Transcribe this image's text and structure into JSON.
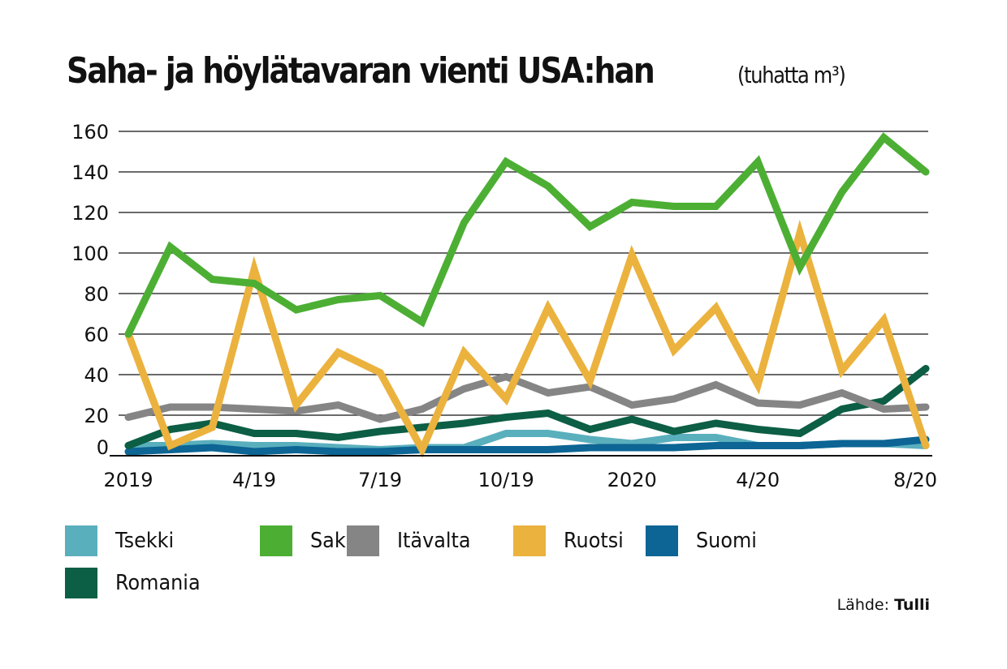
{
  "title": "Saha- ja höylätavaran vienti USA:han",
  "unit": "(tuhatta m³)",
  "source_label": "Lähde:",
  "source_name": "Tulli",
  "chart_data": {
    "type": "line",
    "title": "Saha- ja höylätavaran vienti USA:han",
    "ylabel": "tuhatta m³",
    "xlabel": "",
    "ylim": [
      0,
      160
    ],
    "yticks": [
      0,
      20,
      40,
      60,
      80,
      100,
      120,
      140,
      160
    ],
    "xtick_labels": [
      {
        "label": "2019",
        "index": 0
      },
      {
        "label": "4/19",
        "index": 3
      },
      {
        "label": "7/19",
        "index": 6
      },
      {
        "label": "10/19",
        "index": 9
      },
      {
        "label": "2020",
        "index": 12
      },
      {
        "label": "4/20",
        "index": 15
      },
      {
        "label": "8/20",
        "index": 18.75
      }
    ],
    "grid": true,
    "legend_position": "bottom",
    "n_points": 20,
    "series": [
      {
        "name": "Tsekki",
        "color": "#5aafbd",
        "values": [
          5,
          5,
          6,
          5,
          5,
          4,
          3,
          4,
          4,
          11,
          11,
          8,
          6,
          9,
          9,
          5,
          5,
          6,
          6,
          5
        ]
      },
      {
        "name": "Saksa",
        "color": "#4caf34",
        "values": [
          60,
          103,
          87,
          85,
          72,
          77,
          79,
          66,
          115,
          145,
          133,
          113,
          125,
          123,
          123,
          145,
          93,
          130,
          157,
          140
        ]
      },
      {
        "name": "Itävalta",
        "color": "#858585",
        "values": [
          19,
          24,
          24,
          23,
          22,
          25,
          18,
          23,
          33,
          39,
          31,
          34,
          25,
          28,
          35,
          26,
          25,
          31,
          23,
          24
        ]
      },
      {
        "name": "Ruotsi",
        "color": "#ebb23e",
        "values": [
          60,
          5,
          14,
          92,
          25,
          51,
          41,
          3,
          51,
          28,
          73,
          37,
          99,
          52,
          73,
          35,
          110,
          42,
          67,
          5
        ]
      },
      {
        "name": "Suomi",
        "color": "#0c6594",
        "values": [
          2,
          3,
          4,
          2,
          3,
          2,
          2,
          3,
          3,
          3,
          3,
          4,
          4,
          4,
          5,
          5,
          5,
          6,
          6,
          8
        ]
      },
      {
        "name": "Romania",
        "color": "#0c5e45",
        "values": [
          5,
          13,
          16,
          11,
          11,
          9,
          12,
          14,
          16,
          19,
          21,
          13,
          18,
          12,
          16,
          13,
          11,
          23,
          27,
          43
        ]
      }
    ],
    "draw_order": [
      "Tsekki",
      "Suomi",
      "Romania",
      "Itävalta",
      "Ruotsi",
      "Saksa"
    ]
  }
}
